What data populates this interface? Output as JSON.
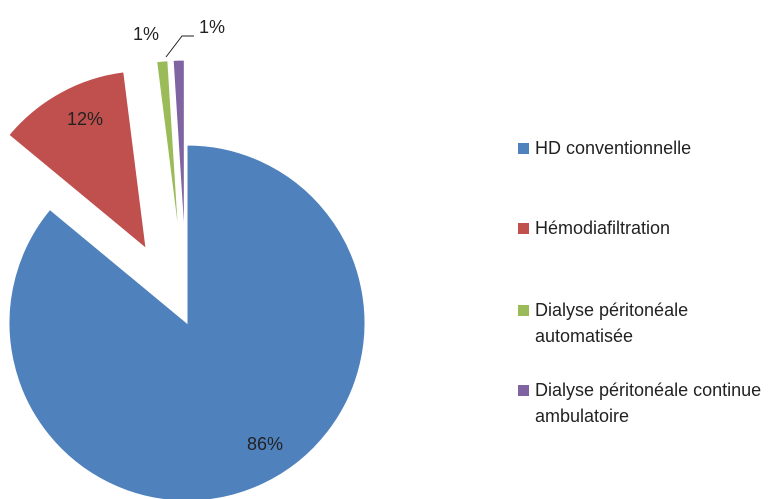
{
  "chart_data": {
    "type": "pie",
    "categories": [
      "HD conventionnelle",
      "Hémodiafiltration",
      "Dialyse péritonéale automatisée",
      "Dialyse péritonéale continue ambulatoire"
    ],
    "values": [
      86,
      12,
      1,
      1
    ],
    "value_labels": [
      "86%",
      "12%",
      "1%",
      "1%"
    ],
    "colors": [
      "#4f81bd",
      "#c0504d",
      "#9bbb59",
      "#8064a2"
    ],
    "legend": "right"
  }
}
